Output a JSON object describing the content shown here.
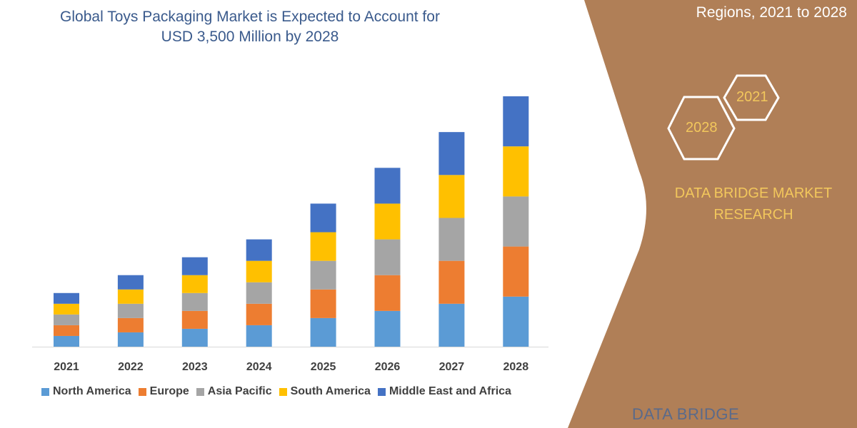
{
  "title_lines": [
    "Global Toys Packaging Market is Expected to Account for",
    "USD  3,500 Million by 2028"
  ],
  "right_panel": {
    "title": "Regions, 2021 to 2028",
    "hex_labels": [
      "2021",
      "2028"
    ],
    "brand_lines": [
      "DATA BRIDGE MARKET",
      "RESEARCH"
    ],
    "logo_text": "DATA BRIDGE",
    "background_color": "#b07f57",
    "accent_color": "#f2c75c"
  },
  "chart_data": {
    "type": "bar",
    "stacked": true,
    "categories": [
      "2021",
      "2022",
      "2023",
      "2024",
      "2025",
      "2026",
      "2027",
      "2028"
    ],
    "series": [
      {
        "name": "North America",
        "color": "#5b9bd5",
        "values": [
          150,
          200,
          250,
          300,
          400,
          500,
          600,
          700
        ]
      },
      {
        "name": "Europe",
        "color": "#ed7d31",
        "values": [
          150,
          200,
          250,
          300,
          400,
          500,
          600,
          700
        ]
      },
      {
        "name": "Asia Pacific",
        "color": "#a5a5a5",
        "values": [
          150,
          200,
          250,
          300,
          400,
          500,
          600,
          700
        ]
      },
      {
        "name": "South America",
        "color": "#ffc000",
        "values": [
          150,
          200,
          250,
          300,
          400,
          500,
          600,
          700
        ]
      },
      {
        "name": "Middle East and Africa",
        "color": "#4472c4",
        "values": [
          150,
          200,
          250,
          300,
          400,
          500,
          600,
          700
        ]
      }
    ],
    "ylim": [
      0,
      3500
    ],
    "y_axis_shown": false,
    "grid": false,
    "legend_position": "bottom",
    "unit": "USD Million (estimated)"
  }
}
